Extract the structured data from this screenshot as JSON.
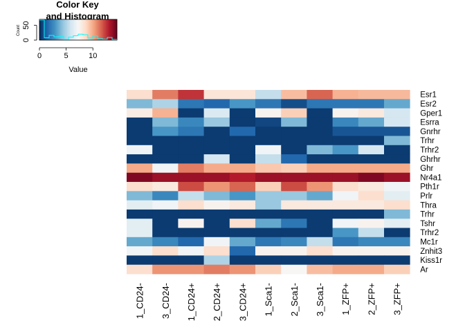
{
  "chart_data": {
    "type": "heatmap",
    "columns": [
      "1_CD24-",
      "3_CD24-",
      "1_CD24+",
      "2_CD24+",
      "3_CD24+",
      "1_Sca1-",
      "2_Sca1-",
      "3_Sca1-",
      "1_ZFP+",
      "2_ZFP+",
      "3_ZFP+"
    ],
    "rows": [
      "Esr1",
      "Esr2",
      "Gper1",
      "Esrra",
      "Gnrhr",
      "Trhr",
      "Trhr2",
      "Ghrhr",
      "Ghr",
      "Nr4a1",
      "Pth1r",
      "Prlr",
      "Thra",
      "Trhr",
      "Tshr",
      "Trhr2",
      "Mc1r",
      "Znhit3",
      "Kiss1r",
      "Ar"
    ],
    "values": [
      [
        8.5,
        11,
        12.5,
        8.2,
        8.2,
        5.5,
        9.5,
        11.5,
        9.8,
        9.6,
        9.6
      ],
      [
        4,
        5,
        2,
        1.5,
        3,
        2,
        0.8,
        2,
        2,
        2,
        3.5
      ],
      [
        7.8,
        9.8,
        0.3,
        6.2,
        0.3,
        7.5,
        9.0,
        0.3,
        7.5,
        8.0,
        6.0
      ],
      [
        0.3,
        4,
        2.5,
        4.5,
        0.3,
        0.6,
        4,
        0.3,
        2.5,
        3.5,
        6
      ],
      [
        0.3,
        3,
        2,
        0.3,
        1.5,
        0.3,
        0.3,
        0.3,
        1,
        1,
        1
      ],
      [
        0.3,
        0.3,
        0.3,
        0.3,
        0.3,
        0.3,
        0.3,
        0.3,
        0.3,
        0.3,
        4
      ],
      [
        7,
        0.3,
        0.3,
        0.3,
        0.3,
        7,
        0.3,
        4,
        3,
        6,
        0.3
      ],
      [
        0.3,
        0.3,
        0.3,
        6,
        0.3,
        5.5,
        1.5,
        0.3,
        0.3,
        0.3,
        0.3
      ],
      [
        10,
        7,
        11,
        10,
        10,
        9.2,
        9.0,
        10,
        10,
        10,
        10
      ],
      [
        14,
        13.5,
        13.5,
        13.5,
        13,
        13.5,
        13.5,
        13.5,
        13.5,
        14,
        13.5
      ],
      [
        8.5,
        8,
        12,
        10.5,
        11.5,
        9,
        12,
        10.5,
        8.5,
        8,
        7
      ],
      [
        4,
        2.5,
        5.5,
        4,
        3,
        4.5,
        4.5,
        3.5,
        7,
        8.5,
        6.5
      ],
      [
        6.5,
        7,
        8.5,
        7.5,
        8,
        4.5,
        8,
        8,
        8,
        8,
        8.5
      ],
      [
        0.3,
        0.3,
        0.3,
        0.3,
        0.3,
        0.3,
        0.3,
        0.3,
        0.3,
        0.3,
        4
      ],
      [
        6.5,
        0.3,
        7.5,
        0.3,
        8.5,
        3.5,
        2,
        0.3,
        7,
        7.5,
        6.5
      ],
      [
        6.5,
        0.3,
        0.3,
        0.3,
        0.3,
        0.3,
        0.3,
        0.3,
        3,
        5.5,
        0.3
      ],
      [
        3.5,
        2.5,
        1.5,
        7,
        3.5,
        2,
        2.5,
        5.5,
        2,
        2.5,
        2.5
      ],
      [
        7,
        8.5,
        7,
        8.5,
        1.5,
        7.5,
        7.5,
        8.5,
        7.5,
        7.5,
        7.5
      ],
      [
        0.3,
        0.3,
        0.3,
        5,
        0.3,
        0.3,
        0.3,
        0.3,
        0.3,
        0.3,
        0.3
      ],
      [
        8.5,
        10.5,
        10.5,
        11,
        10.5,
        9,
        7.3,
        9.5,
        10,
        10,
        9
      ]
    ],
    "color_scale": [
      "#053061",
      "#2166ac",
      "#4393c3",
      "#92c5de",
      "#d1e5f0",
      "#f7f7f7",
      "#fddbc7",
      "#f4a582",
      "#d6604d",
      "#b2182b",
      "#67001f"
    ],
    "value_range": [
      0,
      14.5
    ],
    "color_key": {
      "title": "Color Key\nand Histogram",
      "xlabel": "Value",
      "ylabel": "Count",
      "x_ticks": [
        "0",
        "5",
        "10"
      ],
      "x_tick_values": [
        0,
        5,
        10
      ],
      "y_ticks": [
        "0",
        "50"
      ],
      "y_tick_values": [
        0,
        50
      ],
      "y_max": 70,
      "histogram_color": "#00ffff"
    }
  }
}
